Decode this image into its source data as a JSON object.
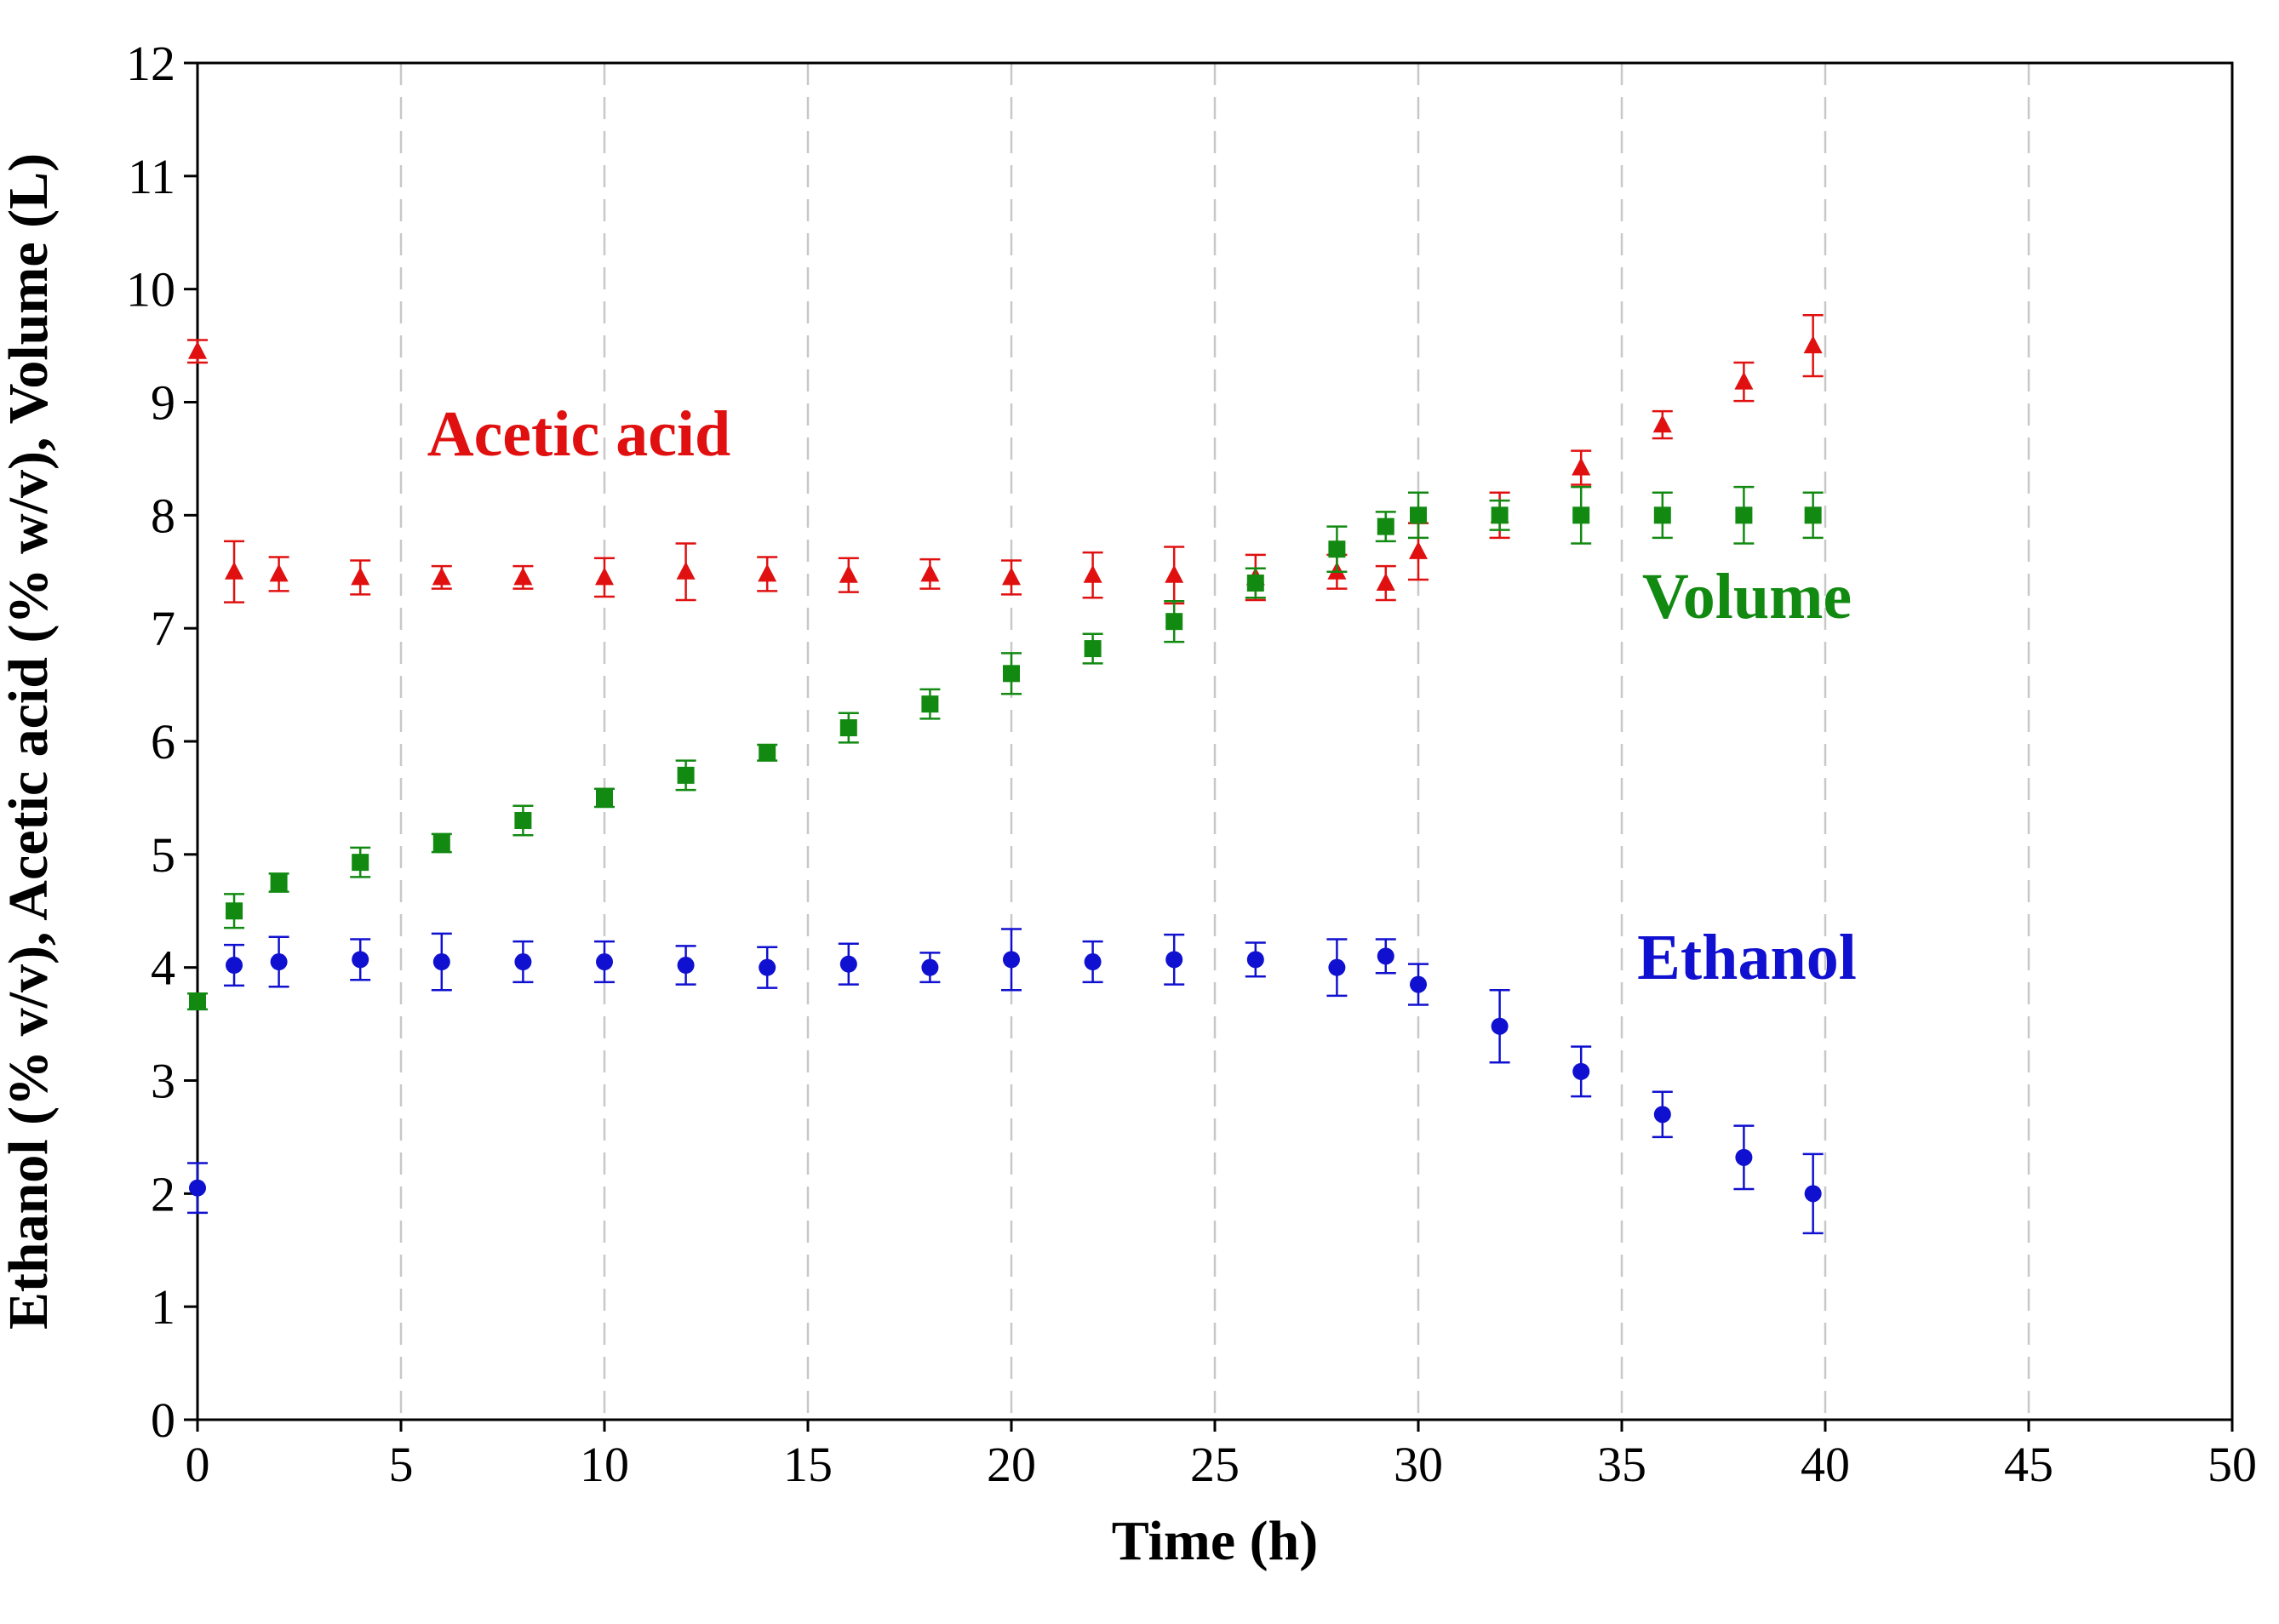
{
  "chart_data": {
    "type": "scatter",
    "title": "",
    "xlabel": "Time (h)",
    "ylabel": "Ethanol (% v/v), Acetic acid (% w/v), Volume (L)",
    "xlim": [
      0,
      50
    ],
    "ylim": [
      0,
      12
    ],
    "xticks": [
      0,
      5,
      10,
      15,
      20,
      25,
      30,
      35,
      40,
      45,
      50
    ],
    "yticks": [
      0,
      1,
      2,
      3,
      4,
      5,
      6,
      7,
      8,
      9,
      10,
      11,
      12
    ],
    "grid": "vertical dashed at every 5 h",
    "error_bars": true,
    "series": [
      {
        "name": "Acetic acid",
        "marker": "triangle",
        "color": "#e01010",
        "x": [
          0,
          0.9,
          2,
          4,
          6,
          8,
          10,
          12,
          14,
          16,
          18,
          20,
          22,
          24,
          26,
          28,
          29.2,
          30,
          32,
          34,
          36,
          38,
          39.7
        ],
        "values": [
          9.45,
          7.5,
          7.48,
          7.45,
          7.45,
          7.45,
          7.45,
          7.5,
          7.48,
          7.47,
          7.48,
          7.45,
          7.47,
          7.47,
          7.45,
          7.5,
          7.4,
          7.68,
          8.0,
          8.42,
          8.8,
          9.18,
          9.5
        ],
        "errors": [
          0.1,
          0.27,
          0.15,
          0.15,
          0.1,
          0.1,
          0.17,
          0.25,
          0.15,
          0.15,
          0.13,
          0.15,
          0.2,
          0.25,
          0.2,
          0.15,
          0.15,
          0.25,
          0.2,
          0.15,
          0.12,
          0.17,
          0.27
        ],
        "label_position": "upper-left"
      },
      {
        "name": "Volume",
        "marker": "square",
        "color": "#128a12",
        "x": [
          0,
          0.9,
          2,
          4,
          6,
          8,
          10,
          12,
          14,
          16,
          18,
          20,
          22,
          24,
          26,
          28,
          29.2,
          30,
          32,
          34,
          36,
          38,
          39.7
        ],
        "values": [
          3.7,
          4.5,
          4.75,
          4.93,
          5.1,
          5.3,
          5.5,
          5.7,
          5.9,
          6.12,
          6.33,
          6.6,
          6.82,
          7.06,
          7.4,
          7.7,
          7.9,
          8.0,
          8.0,
          8.0,
          8.0,
          8.0,
          8.0
        ],
        "errors": [
          0.07,
          0.15,
          0.08,
          0.13,
          0.08,
          0.13,
          0.08,
          0.13,
          0.07,
          0.13,
          0.13,
          0.18,
          0.13,
          0.18,
          0.13,
          0.2,
          0.13,
          0.2,
          0.13,
          0.25,
          0.2,
          0.25,
          0.2
        ],
        "label_position": "right-middle"
      },
      {
        "name": "Ethanol",
        "marker": "circle",
        "color": "#1010d0",
        "x": [
          0,
          0.9,
          2,
          4,
          6,
          8,
          10,
          12,
          14,
          16,
          18,
          20,
          22,
          24,
          26,
          28,
          29.2,
          30,
          32,
          34,
          36,
          38,
          39.7
        ],
        "values": [
          2.05,
          4.02,
          4.05,
          4.07,
          4.05,
          4.05,
          4.05,
          4.02,
          4.0,
          4.03,
          4.0,
          4.07,
          4.05,
          4.07,
          4.07,
          4.0,
          4.1,
          3.85,
          3.48,
          3.08,
          2.7,
          2.32,
          2.0
        ],
        "errors": [
          0.22,
          0.18,
          0.22,
          0.18,
          0.25,
          0.18,
          0.18,
          0.17,
          0.18,
          0.18,
          0.13,
          0.27,
          0.18,
          0.22,
          0.15,
          0.25,
          0.15,
          0.18,
          0.32,
          0.22,
          0.2,
          0.28,
          0.35
        ],
        "label_position": "right-lower"
      }
    ]
  }
}
